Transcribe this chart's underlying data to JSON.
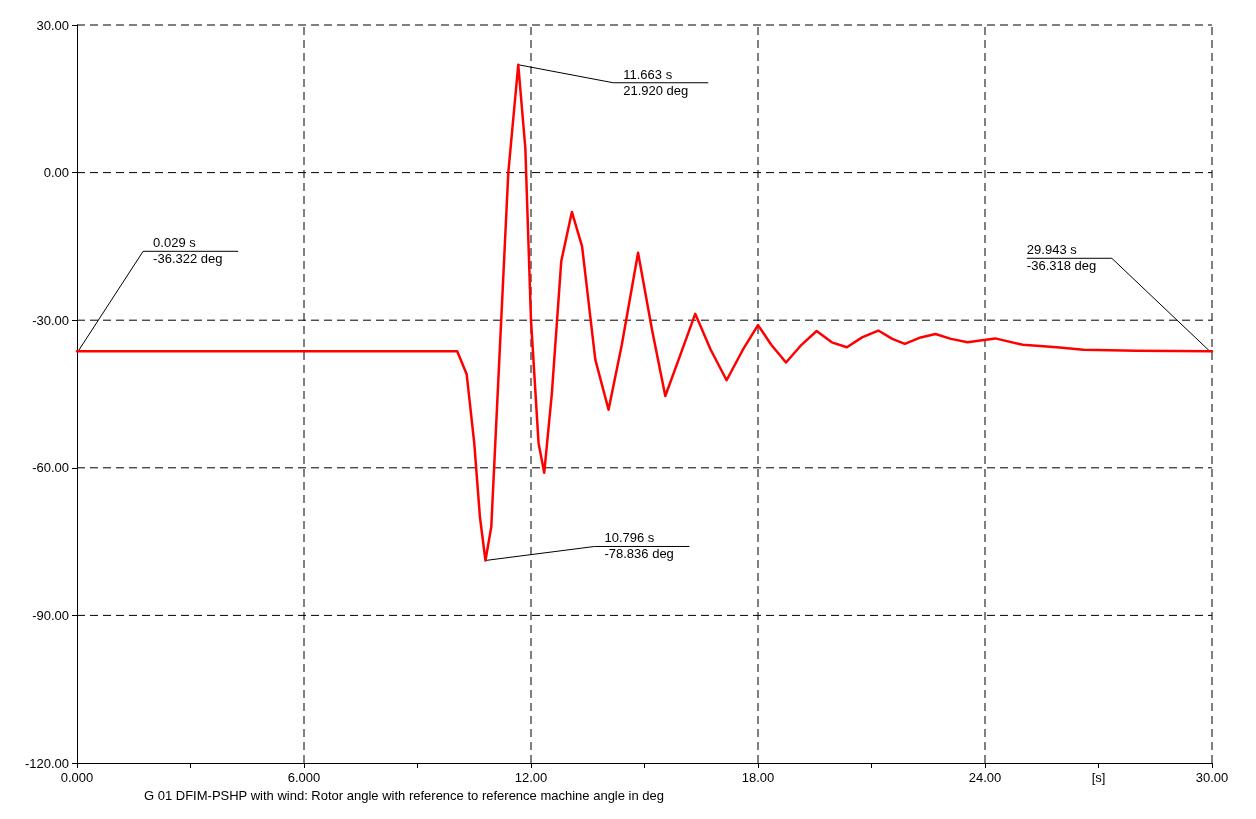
{
  "chart_data": {
    "type": "line",
    "xlabel": "[s]",
    "x": [
      0,
      0.029,
      10.05,
      10.3,
      10.5,
      10.65,
      10.796,
      10.95,
      11.15,
      11.4,
      11.663,
      11.85,
      12.0,
      12.2,
      12.35,
      12.55,
      12.8,
      13.08,
      13.35,
      13.7,
      14.05,
      14.4,
      14.83,
      15.2,
      15.55,
      15.95,
      16.34,
      16.75,
      17.17,
      17.6,
      18.0,
      18.35,
      18.74,
      19.15,
      19.55,
      19.95,
      20.35,
      20.75,
      21.18,
      21.55,
      21.88,
      22.3,
      22.69,
      23.1,
      23.54,
      24.27,
      25.0,
      25.9,
      26.6,
      28.0,
      29.943,
      30
    ],
    "series": [
      {
        "name": "G 01 DFIM-PSHP with wind: Rotor angle with reference to reference machine angle in deg",
        "color": "#ff0000",
        "values": [
          -36.3,
          -36.322,
          -36.3,
          -41,
          -55,
          -70,
          -78.836,
          -72,
          -40,
          0,
          21.92,
          5,
          -30,
          -55,
          -61,
          -45,
          -18,
          -8,
          -15,
          -38,
          -48.2,
          -35,
          -16.3,
          -32,
          -45.4,
          -37,
          -28.7,
          -36,
          -42.2,
          -36,
          -31.0,
          -35,
          -38.6,
          -35,
          -32.2,
          -34.5,
          -35.5,
          -33.5,
          -32.1,
          -33.8,
          -34.8,
          -33.5,
          -32.8,
          -33.8,
          -34.5,
          -33.7,
          -35.0,
          -35.5,
          -36.0,
          -36.2,
          -36.318,
          -36.3
        ]
      }
    ],
    "xlim": [
      0,
      30
    ],
    "xticks": [
      {
        "value": 0,
        "label": "0.000"
      },
      {
        "value": 3,
        "label": null
      },
      {
        "value": 6,
        "label": "6.000"
      },
      {
        "value": 9,
        "label": null
      },
      {
        "value": 12,
        "label": "12.00"
      },
      {
        "value": 15,
        "label": null
      },
      {
        "value": 18,
        "label": "18.00"
      },
      {
        "value": 21,
        "label": null
      },
      {
        "value": 24,
        "label": "24.00"
      },
      {
        "value": 27,
        "label": null
      },
      {
        "value": 30,
        "label": "30.00"
      }
    ],
    "ylim": [
      -120,
      30
    ],
    "yticks": [
      {
        "value": -120,
        "label": "-120.00"
      },
      {
        "value": -90,
        "label": "-90.00"
      },
      {
        "value": -60,
        "label": "-60.00"
      },
      {
        "value": -30,
        "label": "-30.00"
      },
      {
        "value": 0,
        "label": "0.00"
      },
      {
        "value": 30,
        "label": "30.00"
      }
    ],
    "grid": true,
    "legend": "bottom",
    "marker": "none",
    "line_style": "solid",
    "annotations": [
      {
        "text": "0.029 s\n-36.322 deg",
        "x": 0.029,
        "y": -36.322
      },
      {
        "text": "11.663 s\n21.920 deg",
        "x": 11.663,
        "y": 21.92
      },
      {
        "text": "10.796 s\n-78.836 deg",
        "x": 10.796,
        "y": -78.836
      },
      {
        "text": "29.943 s\n-36.318 deg",
        "x": 29.943,
        "y": -36.318
      }
    ]
  }
}
